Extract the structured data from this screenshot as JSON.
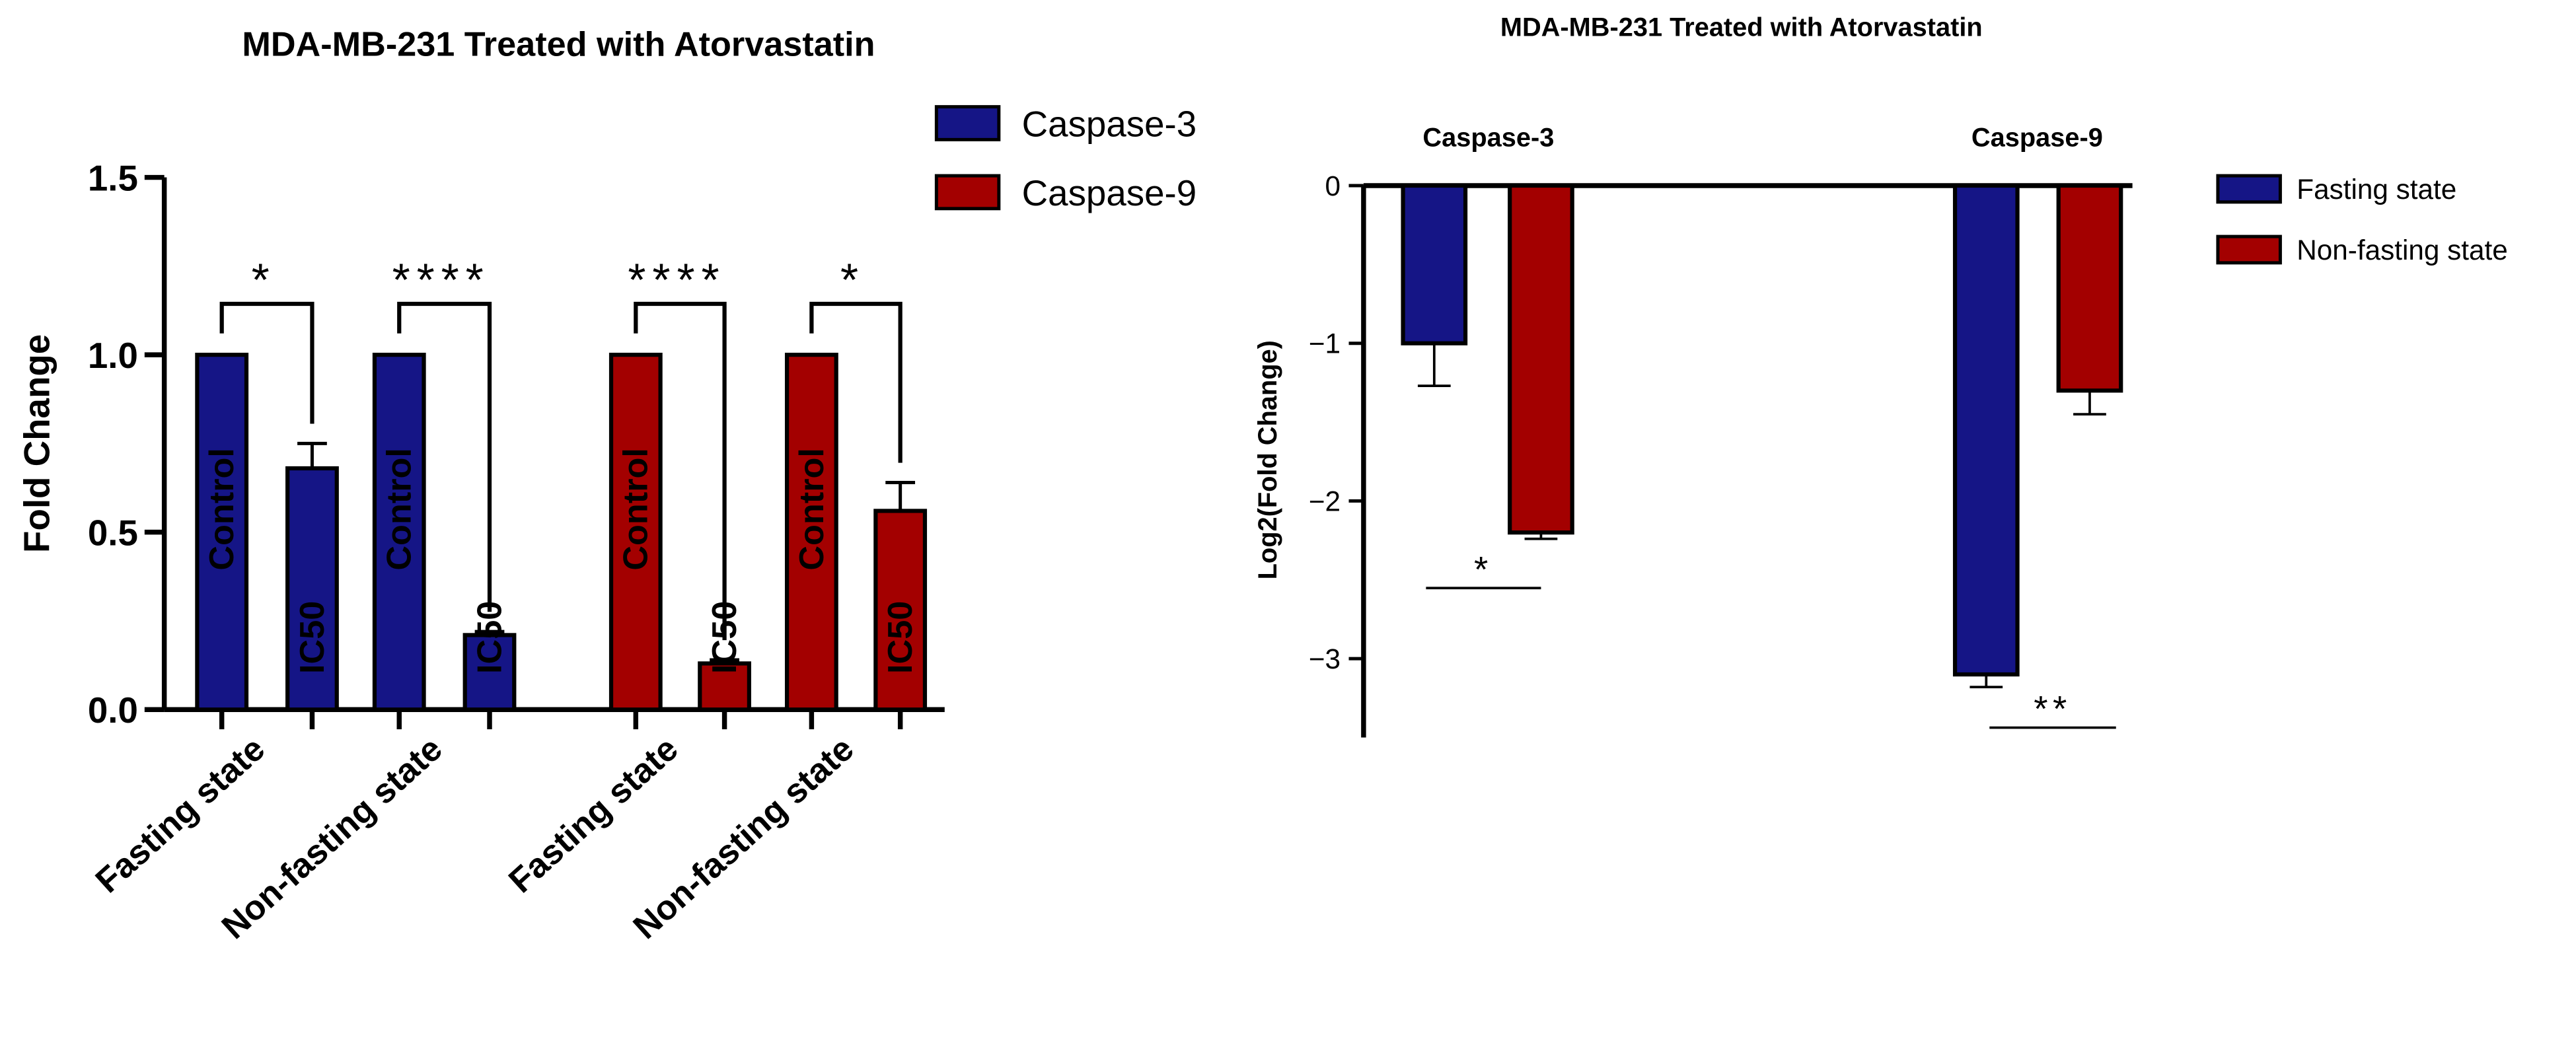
{
  "chart_data": [
    {
      "type": "grouped-bar",
      "title": "MDA-MB-231 Treated with Atorvastatin",
      "ylabel": "Fold Change",
      "ylim": [
        0,
        1.5
      ],
      "yticks": [
        {
          "value": 0,
          "label": "0.0"
        },
        {
          "value": 0.5,
          "label": "0.5"
        },
        {
          "value": 1,
          "label": "1.0"
        },
        {
          "value": 1.5,
          "label": "1.5"
        }
      ],
      "legend": "top-right",
      "series": [
        {
          "name": "Caspase-3",
          "color": "#151586",
          "groups": [
            {
              "category": "Fasting state",
              "bar_labels": [
                "Control",
                "IC50"
              ],
              "values": [
                1,
                0.68
              ],
              "errors": [
                null,
                0.07
              ],
              "significance": "*"
            },
            {
              "category": "Non-fasting state",
              "bar_labels": [
                "Control",
                "IC50"
              ],
              "values": [
                1,
                0.21
              ],
              "errors": [
                null,
                0.01
              ],
              "significance": "****"
            }
          ]
        },
        {
          "name": "Caspase-9",
          "color": "#a30000",
          "groups": [
            {
              "category": "Fasting state",
              "bar_labels": [
                "Control",
                "IC50"
              ],
              "values": [
                1,
                0.13
              ],
              "errors": [
                null,
                0.01
              ],
              "significance": "****"
            },
            {
              "category": "Non-fasting state",
              "bar_labels": [
                "Control",
                "IC50"
              ],
              "values": [
                1,
                0.56
              ],
              "errors": [
                null,
                0.08
              ],
              "significance": "*"
            }
          ]
        }
      ]
    },
    {
      "type": "negative-bar",
      "title": "MDA-MB-231 Treated with Atorvastatin",
      "ylabel": "Log2(Fold Change)",
      "categories": [
        "Caspase-3",
        "Caspase-9"
      ],
      "ylim": [
        -3.5,
        0
      ],
      "yticks": [
        0,
        {
          "value": -1,
          "label": "−1"
        },
        {
          "value": -2,
          "label": "−2"
        },
        {
          "value": -3,
          "label": "−3"
        }
      ],
      "legend": "right",
      "significance": [
        "*",
        "**"
      ],
      "series": [
        {
          "name": "Fasting state",
          "color": "#151586",
          "values": [
            -1.0,
            -3.1
          ],
          "errors": [
            0.27,
            0.08
          ]
        },
        {
          "name": "Non-fasting state",
          "color": "#a30000",
          "values": [
            -2.2,
            -1.3
          ],
          "errors": [
            0.04,
            0.15
          ]
        }
      ]
    }
  ]
}
